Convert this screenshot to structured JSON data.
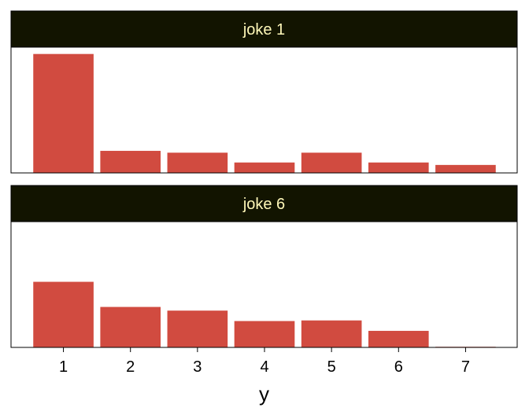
{
  "chart_data": {
    "type": "bar",
    "categories": [
      "1",
      "2",
      "3",
      "4",
      "5",
      "6",
      "7"
    ],
    "xlabel": "y",
    "ylabel": "",
    "ylim": [
      0,
      1
    ],
    "colors": {
      "bar": "#d14b40",
      "strip_background": "#121400",
      "strip_text": "#fff8b8",
      "frame": "#000000"
    },
    "panels": [
      {
        "name": "joke 1",
        "values": [
          0.97,
          0.18,
          0.165,
          0.085,
          0.165,
          0.085,
          0.065
        ]
      },
      {
        "name": "joke 6",
        "values": [
          0.535,
          0.33,
          0.3,
          0.215,
          0.22,
          0.135,
          0.005
        ]
      }
    ]
  }
}
